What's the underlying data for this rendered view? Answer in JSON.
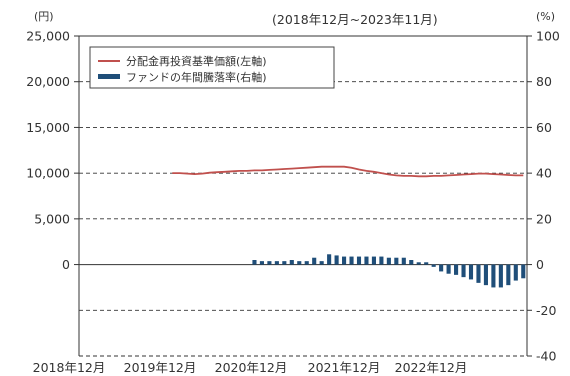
{
  "chart_data": {
    "type": "line+bar",
    "period_label": "(2018年12月~2023年11月)",
    "left_axis": {
      "unit": "(円)",
      "ticks": [
        25000,
        20000,
        15000,
        10000,
        5000,
        0
      ],
      "tick_labels": [
        "25,000",
        "20,000",
        "15,000",
        "10,000",
        "5,000",
        "0"
      ],
      "range": [
        -10000,
        25000
      ]
    },
    "right_axis": {
      "unit": "(%)",
      "ticks": [
        100,
        80,
        60,
        40,
        20,
        0,
        -20,
        -40
      ],
      "tick_labels": [
        "100",
        "80",
        "60",
        "40",
        "20",
        "0",
        "-20",
        "-40"
      ],
      "range": [
        -40,
        100
      ]
    },
    "x_axis": {
      "tick_labels": [
        "2018年12月",
        "2019年12月",
        "2020年12月",
        "2021年12月",
        "2022年12月"
      ],
      "start": "2018-12",
      "end": "2023-11"
    },
    "grid": "dashed horizontal lines at each tick",
    "legend": [
      {
        "label": "分配金再投資基準価額(左軸)",
        "color": "#c0504d",
        "type": "line"
      },
      {
        "label": "ファンドの年間騰落率(右軸)",
        "color": "#1f4e79",
        "type": "bar"
      }
    ],
    "series": [
      {
        "name": "分配金再投資基準価額(左軸)",
        "axis": "left",
        "color": "#c0504d",
        "points": [
          [
            "2019-12",
            10000
          ],
          [
            "2020-01",
            10000
          ],
          [
            "2020-02",
            9950
          ],
          [
            "2020-03",
            9900
          ],
          [
            "2020-04",
            9950
          ],
          [
            "2020-05",
            10050
          ],
          [
            "2020-06",
            10100
          ],
          [
            "2020-07",
            10150
          ],
          [
            "2020-08",
            10200
          ],
          [
            "2020-09",
            10250
          ],
          [
            "2020-10",
            10250
          ],
          [
            "2020-11",
            10300
          ],
          [
            "2020-12",
            10300
          ],
          [
            "2021-01",
            10350
          ],
          [
            "2021-02",
            10400
          ],
          [
            "2021-03",
            10450
          ],
          [
            "2021-04",
            10500
          ],
          [
            "2021-05",
            10550
          ],
          [
            "2021-06",
            10600
          ],
          [
            "2021-07",
            10650
          ],
          [
            "2021-08",
            10700
          ],
          [
            "2021-09",
            10700
          ],
          [
            "2021-10",
            10700
          ],
          [
            "2021-11",
            10700
          ],
          [
            "2021-12",
            10600
          ],
          [
            "2022-01",
            10400
          ],
          [
            "2022-02",
            10250
          ],
          [
            "2022-03",
            10150
          ],
          [
            "2022-04",
            10000
          ],
          [
            "2022-05",
            9850
          ],
          [
            "2022-06",
            9750
          ],
          [
            "2022-07",
            9700
          ],
          [
            "2022-08",
            9700
          ],
          [
            "2022-09",
            9650
          ],
          [
            "2022-10",
            9650
          ],
          [
            "2022-11",
            9700
          ],
          [
            "2022-12",
            9700
          ],
          [
            "2023-01",
            9750
          ],
          [
            "2023-02",
            9800
          ],
          [
            "2023-03",
            9850
          ],
          [
            "2023-04",
            9900
          ],
          [
            "2023-05",
            9950
          ],
          [
            "2023-06",
            9950
          ],
          [
            "2023-07",
            9900
          ],
          [
            "2023-08",
            9850
          ],
          [
            "2023-09",
            9800
          ],
          [
            "2023-10",
            9750
          ],
          [
            "2023-11",
            9750
          ]
        ]
      },
      {
        "name": "ファンドの年間騰落率(右軸)",
        "axis": "right",
        "color": "#1f4e79",
        "points": [
          [
            "2020-11",
            2
          ],
          [
            "2020-12",
            1.5
          ],
          [
            "2021-01",
            1.5
          ],
          [
            "2021-02",
            1.5
          ],
          [
            "2021-03",
            1.5
          ],
          [
            "2021-04",
            2
          ],
          [
            "2021-05",
            1.5
          ],
          [
            "2021-06",
            1.5
          ],
          [
            "2021-07",
            3
          ],
          [
            "2021-08",
            1.5
          ],
          [
            "2021-09",
            4.5
          ],
          [
            "2021-10",
            4
          ],
          [
            "2021-11",
            3.5
          ],
          [
            "2021-12",
            3.5
          ],
          [
            "2022-01",
            3.5
          ],
          [
            "2022-02",
            3.5
          ],
          [
            "2022-03",
            3.5
          ],
          [
            "2022-04",
            3.5
          ],
          [
            "2022-05",
            3
          ],
          [
            "2022-06",
            3
          ],
          [
            "2022-07",
            3
          ],
          [
            "2022-08",
            2
          ],
          [
            "2022-09",
            1
          ],
          [
            "2022-10",
            1
          ],
          [
            "2022-11",
            -1
          ],
          [
            "2022-12",
            -3
          ],
          [
            "2023-01",
            -4
          ],
          [
            "2023-02",
            -4.5
          ],
          [
            "2023-03",
            -5.5
          ],
          [
            "2023-04",
            -6.5
          ],
          [
            "2023-05",
            -8
          ],
          [
            "2023-06",
            -9
          ],
          [
            "2023-07",
            -10
          ],
          [
            "2023-08",
            -10
          ],
          [
            "2023-09",
            -9
          ],
          [
            "2023-10",
            -7
          ],
          [
            "2023-11",
            -6
          ]
        ]
      }
    ]
  }
}
